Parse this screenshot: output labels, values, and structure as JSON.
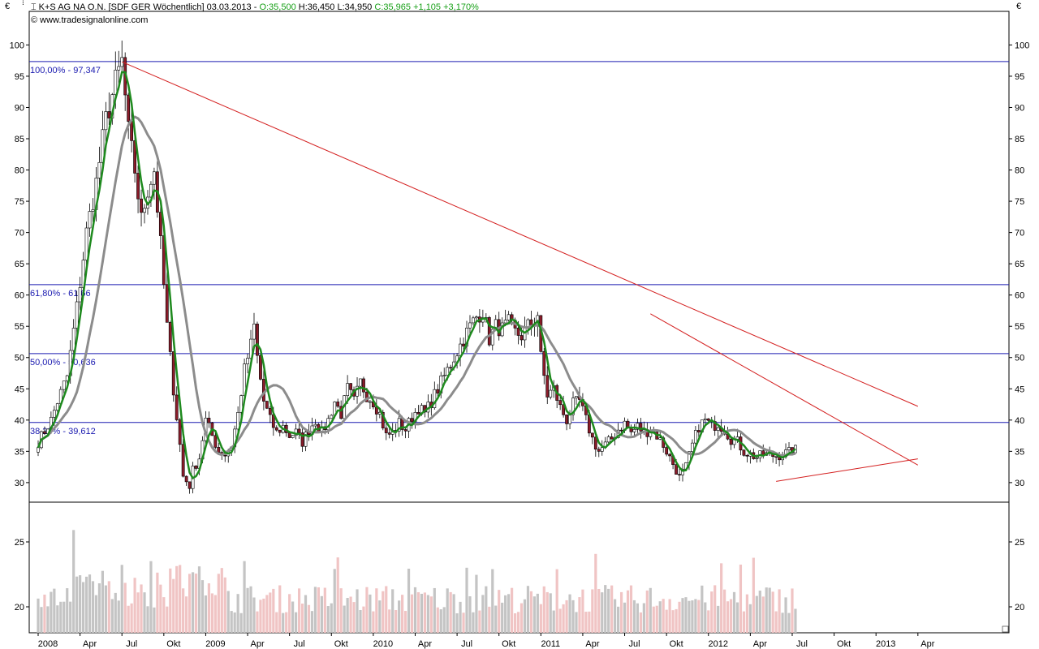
{
  "header": {
    "instrument": "K+S AG NA O.N. [SDF GER  Wöchentlich] 03.03.2013",
    "open": "O:35,500",
    "high": "H:36,450",
    "low": "L:34,950",
    "close": "C:35,965",
    "change": "+1,105",
    "change_pct": "+3,170%",
    "source": "www.tradesignalonline.com"
  },
  "currency_symbol": "€",
  "colors": {
    "up_candle": "#ffffff",
    "down_candle": "#8b1c2a",
    "ma_fast": "#1e8a1e",
    "ma_slow": "#8c8c8c",
    "trendline": "#d42020",
    "fib_line": "#1a1ab0",
    "volume_up": "#c4c4c4",
    "volume_down": "#f0c4c4",
    "positive_text": "#18a018"
  },
  "chart_data": {
    "type": "candlestick",
    "title": "K+S AG NA O.N. [SDF GER  Wöchentlich] 03.03.2013",
    "x_ticks": [
      {
        "label": "2008",
        "week": 0
      },
      {
        "label": "Apr",
        "week": 13
      },
      {
        "label": "Jul",
        "week": 26
      },
      {
        "label": "Okt",
        "week": 39
      },
      {
        "label": "2009",
        "week": 52
      },
      {
        "label": "Apr",
        "week": 65
      },
      {
        "label": "Jul",
        "week": 78
      },
      {
        "label": "Okt",
        "week": 91
      },
      {
        "label": "2010",
        "week": 104
      },
      {
        "label": "Apr",
        "week": 117
      },
      {
        "label": "Jul",
        "week": 130
      },
      {
        "label": "Okt",
        "week": 143
      },
      {
        "label": "2011",
        "week": 156
      },
      {
        "label": "Apr",
        "week": 169
      },
      {
        "label": "Jul",
        "week": 182
      },
      {
        "label": "Okt",
        "week": 195
      },
      {
        "label": "2012",
        "week": 208
      },
      {
        "label": "Apr",
        "week": 221
      },
      {
        "label": "Jul",
        "week": 234
      },
      {
        "label": "Okt",
        "week": 247
      },
      {
        "label": "2013",
        "week": 260
      },
      {
        "label": "Apr",
        "week": 273
      }
    ],
    "y_ticks": [
      30,
      35,
      40,
      45,
      50,
      55,
      60,
      65,
      70,
      75,
      80,
      85,
      90,
      95,
      100
    ],
    "ylim": [
      27,
      102
    ],
    "volume_ticks": [
      20,
      25
    ],
    "volume_ylim": [
      18,
      28
    ],
    "fib_levels": [
      {
        "label": "100,00% - 97,347",
        "value": 97.347
      },
      {
        "label": "61,80% - 61,66",
        "value": 61.66
      },
      {
        "label": "50,00% - 50,636",
        "value": 50.636
      },
      {
        "label": "38,20% - 39,612",
        "value": 39.612
      }
    ],
    "trendlines": [
      {
        "from": [
          26,
          97.3
        ],
        "to": [
          273,
          42.2
        ]
      },
      {
        "from": [
          190,
          57.0
        ],
        "to": [
          273,
          32.8
        ]
      },
      {
        "from": [
          229,
          30.2
        ],
        "to": [
          273,
          33.8
        ]
      }
    ],
    "price_anchors": [
      [
        0,
        36.5
      ],
      [
        4,
        40
      ],
      [
        6,
        43
      ],
      [
        9,
        47
      ],
      [
        12,
        58
      ],
      [
        15,
        70
      ],
      [
        18,
        78
      ],
      [
        21,
        88
      ],
      [
        24,
        94
      ],
      [
        26,
        97.3
      ],
      [
        28,
        86
      ],
      [
        30,
        80
      ],
      [
        32,
        72
      ],
      [
        34,
        77
      ],
      [
        36,
        80
      ],
      [
        38,
        68
      ],
      [
        40,
        55
      ],
      [
        42,
        45
      ],
      [
        44,
        36
      ],
      [
        45,
        31
      ],
      [
        47,
        29.5
      ],
      [
        48,
        32
      ],
      [
        50,
        34
      ],
      [
        52,
        40
      ],
      [
        54,
        37.5
      ],
      [
        56,
        35
      ],
      [
        58,
        34.5
      ],
      [
        60,
        36
      ],
      [
        62,
        41
      ],
      [
        64,
        48
      ],
      [
        66,
        52
      ],
      [
        67,
        55
      ],
      [
        68,
        50
      ],
      [
        70,
        43
      ],
      [
        72,
        40
      ],
      [
        74,
        38
      ],
      [
        76,
        39
      ],
      [
        78,
        37.5
      ],
      [
        80,
        38
      ],
      [
        82,
        36.5
      ],
      [
        84,
        38.5
      ],
      [
        86,
        40
      ],
      [
        88,
        38
      ],
      [
        90,
        40
      ],
      [
        92,
        43
      ],
      [
        94,
        41
      ],
      [
        96,
        45
      ],
      [
        98,
        43
      ],
      [
        100,
        46
      ],
      [
        102,
        44
      ],
      [
        104,
        43
      ],
      [
        106,
        41
      ],
      [
        108,
        37.5
      ],
      [
        110,
        38
      ],
      [
        112,
        39.5
      ],
      [
        114,
        38.5
      ],
      [
        116,
        40.5
      ],
      [
        118,
        42
      ],
      [
        120,
        41
      ],
      [
        122,
        43
      ],
      [
        124,
        45
      ],
      [
        126,
        47
      ],
      [
        128,
        49
      ],
      [
        130,
        51
      ],
      [
        132,
        53
      ],
      [
        134,
        55
      ],
      [
        136,
        56.5
      ],
      [
        138,
        57.5
      ],
      [
        140,
        53
      ],
      [
        142,
        55
      ],
      [
        144,
        54.5
      ],
      [
        146,
        55.5
      ],
      [
        148,
        54
      ],
      [
        150,
        53.5
      ],
      [
        152,
        55
      ],
      [
        154,
        56
      ],
      [
        155,
        57
      ],
      [
        156,
        50
      ],
      [
        158,
        44
      ],
      [
        160,
        45
      ],
      [
        162,
        42
      ],
      [
        164,
        40
      ],
      [
        166,
        42.5
      ],
      [
        168,
        43
      ],
      [
        170,
        40
      ],
      [
        172,
        37
      ],
      [
        174,
        35
      ],
      [
        176,
        36
      ],
      [
        178,
        37
      ],
      [
        180,
        38.5
      ],
      [
        182,
        39.5
      ],
      [
        184,
        38
      ],
      [
        186,
        39
      ],
      [
        188,
        38
      ],
      [
        190,
        38.5
      ],
      [
        192,
        37.5
      ],
      [
        194,
        36
      ],
      [
        196,
        34
      ],
      [
        198,
        32
      ],
      [
        199,
        30.8
      ],
      [
        201,
        32.5
      ],
      [
        203,
        36
      ],
      [
        205,
        39
      ],
      [
        207,
        40
      ],
      [
        209,
        39
      ],
      [
        211,
        39.5
      ],
      [
        213,
        38.5
      ],
      [
        215,
        37
      ],
      [
        217,
        36.5
      ],
      [
        219,
        35
      ],
      [
        221,
        34.5
      ],
      [
        223,
        34
      ],
      [
        225,
        34.5
      ],
      [
        227,
        34.5
      ],
      [
        229,
        34.2
      ],
      [
        231,
        34.6
      ],
      [
        233,
        34.8
      ],
      [
        235,
        35.965
      ]
    ],
    "series": [
      {
        "name": "Kurs",
        "kind": "candles"
      },
      {
        "name": "MA schnell",
        "kind": "line"
      },
      {
        "name": "MA langsam",
        "kind": "line"
      },
      {
        "name": "Volumen",
        "kind": "bars"
      }
    ]
  }
}
